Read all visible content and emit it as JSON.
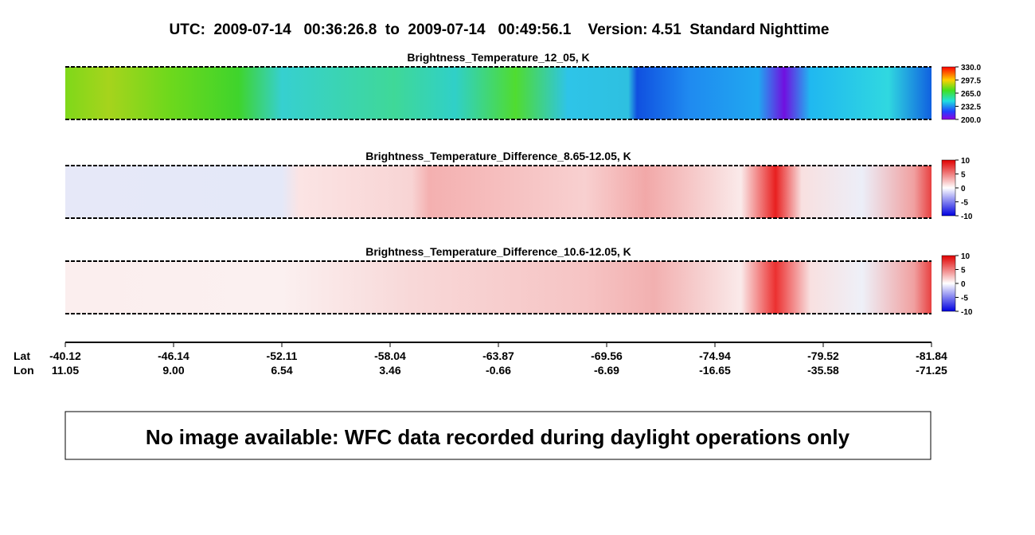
{
  "header": {
    "title": "UTC:  2009-07-14   00:36:26.8  to  2009-07-14   00:49:56.1    Version: 4.51  Standard Nighttime"
  },
  "panels": [
    {
      "title": "Brightness_Temperature_12_05, K",
      "colorbar_ticks": [
        "330.0",
        "297.5",
        "265.0",
        "232.5",
        "200.0"
      ]
    },
    {
      "title": "Brightness_Temperature_Difference_8.65-12.05, K",
      "colorbar_ticks": [
        "10",
        "5",
        "0",
        "-5",
        "-10"
      ]
    },
    {
      "title": "Brightness_Temperature_Difference_10.6-12.05, K",
      "colorbar_ticks": [
        "10",
        "5",
        "0",
        "-5",
        "-10"
      ]
    }
  ],
  "axis": {
    "row_labels": [
      "Lat",
      "Lon"
    ],
    "lat": [
      "-40.12",
      "-46.14",
      "-52.11",
      "-58.04",
      "-63.87",
      "-69.56",
      "-74.94",
      "-79.52",
      "-81.84"
    ],
    "lon": [
      "11.05",
      "9.00",
      "6.54",
      "3.46",
      "-0.66",
      "-6.69",
      "-16.65",
      "-35.58",
      "-71.25"
    ]
  },
  "message": "No image available: WFC data recorded during daylight operations only"
}
